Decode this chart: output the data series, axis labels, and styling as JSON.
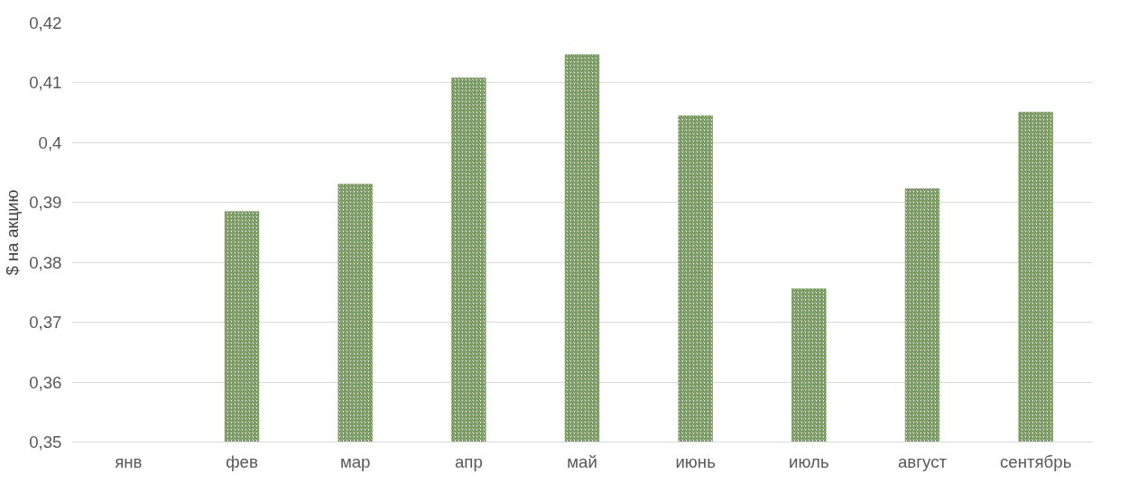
{
  "chart_data": {
    "type": "bar",
    "ylabel": "$ на акцию",
    "categories": [
      "янв",
      "фев",
      "мар",
      "апр",
      "май",
      "июнь",
      "июль",
      "август",
      "сентябрь"
    ],
    "values": [
      null,
      0.3885,
      0.3931,
      0.4108,
      0.4147,
      0.4045,
      0.3756,
      0.3923,
      0.4051
    ],
    "color": "#5b8a3a",
    "ylim": [
      0.35,
      0.42
    ],
    "yticks": [
      {
        "value": 0.35,
        "label": "0,35"
      },
      {
        "value": 0.36,
        "label": "0,36"
      },
      {
        "value": 0.37,
        "label": "0,37"
      },
      {
        "value": 0.38,
        "label": "0,38"
      },
      {
        "value": 0.39,
        "label": "0,39"
      },
      {
        "value": 0.4,
        "label": "0,4"
      },
      {
        "value": 0.41,
        "label": "0,41"
      },
      {
        "value": 0.42,
        "label": "0,42"
      }
    ],
    "grid": "y"
  }
}
